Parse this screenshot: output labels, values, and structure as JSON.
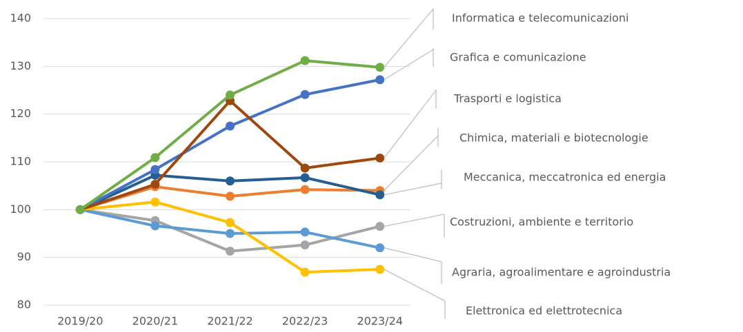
{
  "chart_data": {
    "type": "line",
    "categories": [
      "2019/20",
      "2020/21",
      "2021/22",
      "2022/23",
      "2023/24"
    ],
    "ylim": [
      80,
      140
    ],
    "yticks": [
      80,
      90,
      100,
      110,
      120,
      130,
      140
    ],
    "grid": true,
    "series": [
      {
        "name": "Informatica e telecomunicazioni",
        "color": "#70ad47",
        "values": [
          100,
          110.9,
          124,
          131.2,
          129.8
        ]
      },
      {
        "name": "Grafica e comunicazione",
        "color": "#4472c4",
        "values": [
          100,
          108.4,
          117.5,
          124.1,
          127.2
        ]
      },
      {
        "name": "Trasporti e logistica",
        "color": "#9e480e",
        "values": [
          100,
          105.3,
          122.8,
          108.7,
          110.8
        ]
      },
      {
        "name": "Chimica, materiali e biotecnologie",
        "color": "#ed7d31",
        "values": [
          100,
          104.8,
          102.8,
          104.2,
          104
        ]
      },
      {
        "name": "Meccanica, meccatronica ed energia",
        "color": "#255e91",
        "values": [
          100,
          107.2,
          106,
          106.7,
          103.1
        ]
      },
      {
        "name": "Costruzioni, ambiente e territorio",
        "color": "#a5a5a5",
        "values": [
          100,
          97.7,
          91.3,
          92.6,
          96.5
        ]
      },
      {
        "name": "Agraria, agroalimentare e agroindustria",
        "color": "#5b9bd5",
        "values": [
          100,
          96.6,
          95,
          95.3,
          92
        ]
      },
      {
        "name": "Elettronica ed elettrotecnica",
        "color": "#ffc000",
        "values": [
          100,
          101.6,
          97.3,
          86.9,
          87.5
        ]
      }
    ]
  }
}
